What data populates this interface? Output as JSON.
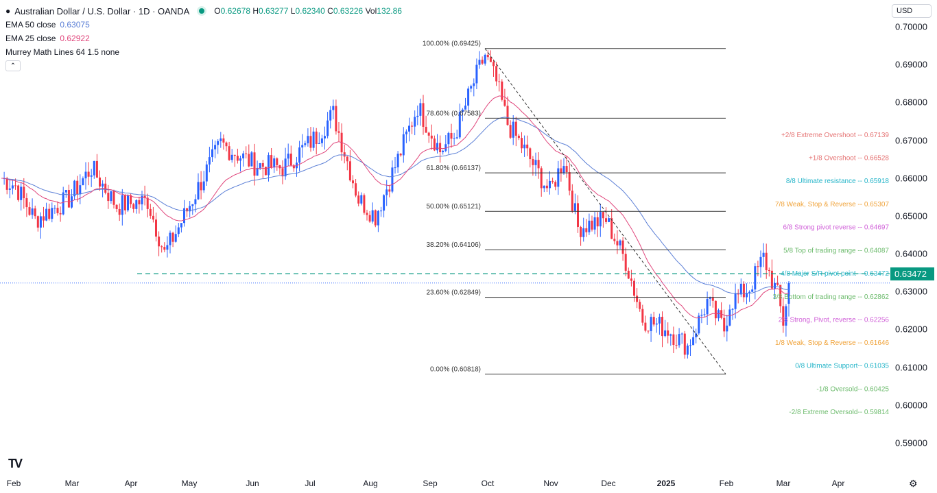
{
  "header": {
    "title": "Australian Dollar / U.S. Dollar · 1D · OANDA",
    "o_label": "O",
    "o": "0.62678",
    "h_label": "H",
    "h": "0.63277",
    "l_label": "L",
    "l": "0.62340",
    "c_label": "C",
    "c": "0.63226",
    "vol_label": "Vol",
    "vol": "132.86"
  },
  "indicators": [
    {
      "name": "EMA 50 close",
      "value": "0.63075",
      "color": "#5b7fd6"
    },
    {
      "name": "EMA 25 close",
      "value": "0.62922",
      "color": "#e0457b"
    },
    {
      "name": "Murrey Math Lines 64 1.5 none",
      "value": ""
    }
  ],
  "currency": "USD",
  "current_price_label": "0.63472",
  "chart_data": {
    "type": "candlestick",
    "ylim": [
      0.59,
      0.7
    ],
    "y_ticks": [
      "0.70000",
      "0.69000",
      "0.68000",
      "0.67000",
      "0.66000",
      "0.65000",
      "0.64000",
      "0.63000",
      "0.62000",
      "0.61000",
      "0.60000",
      "0.59000"
    ],
    "x_ticks": [
      "Feb",
      "Mar",
      "Apr",
      "May",
      "Jun",
      "Jul",
      "Aug",
      "Sep",
      "Oct",
      "Nov",
      "Dec",
      "2025",
      "Feb",
      "Mar",
      "Apr"
    ],
    "last_close": 0.63226,
    "approx_close_path": [
      [
        0,
        0.66
      ],
      [
        5,
        0.658
      ],
      [
        12,
        0.649
      ],
      [
        24,
        0.6545
      ],
      [
        32,
        0.6627
      ],
      [
        41,
        0.6527
      ],
      [
        52,
        0.654
      ],
      [
        58,
        0.64
      ],
      [
        63,
        0.647
      ],
      [
        73,
        0.662
      ],
      [
        78,
        0.669
      ],
      [
        90,
        0.6636
      ],
      [
        100,
        0.6627
      ],
      [
        112,
        0.671
      ],
      [
        118,
        0.677
      ],
      [
        127,
        0.6545
      ],
      [
        133,
        0.65
      ],
      [
        141,
        0.665
      ],
      [
        148,
        0.679
      ],
      [
        156,
        0.6672
      ],
      [
        161,
        0.671
      ],
      [
        168,
        0.6853
      ],
      [
        172,
        0.6926
      ],
      [
        176,
        0.6853
      ],
      [
        180,
        0.6744
      ],
      [
        188,
        0.665
      ],
      [
        195,
        0.6563
      ],
      [
        200,
        0.665
      ],
      [
        205,
        0.647
      ],
      [
        215,
        0.649
      ],
      [
        222,
        0.638
      ],
      [
        228,
        0.6228
      ],
      [
        237,
        0.62
      ],
      [
        244,
        0.6155
      ],
      [
        251,
        0.6273
      ],
      [
        257,
        0.62
      ],
      [
        259,
        0.627
      ],
      [
        266,
        0.631
      ],
      [
        271,
        0.639
      ],
      [
        276,
        0.629
      ],
      [
        278,
        0.622
      ],
      [
        280,
        0.63226
      ]
    ],
    "fibonacci": [
      {
        "label": "100.00% (0.69425)",
        "price": 0.69425
      },
      {
        "label": "78.60% (0.67583)",
        "price": 0.67583
      },
      {
        "label": "61.80% (0.66137)",
        "price": 0.66137
      },
      {
        "label": "50.00% (0.65121)",
        "price": 0.65121
      },
      {
        "label": "38.20% (0.64106)",
        "price": 0.64106
      },
      {
        "label": "23.60% (0.62849)",
        "price": 0.62849
      },
      {
        "label": "0.00% (0.60818)",
        "price": 0.60818
      }
    ],
    "murrey": [
      {
        "label": "+2/8 Extreme Overshoot --  0.67139",
        "price": 0.67139,
        "color": "#e57373"
      },
      {
        "label": "+1/8 Overshoot --  0.66528",
        "price": 0.66528,
        "color": "#e57373"
      },
      {
        "label": "8/8 Ultimate resistance --  0.65918",
        "price": 0.65918,
        "color": "#26b5c9"
      },
      {
        "label": "7/8 Weak, Stop & Reverse --  0.65307",
        "price": 0.65307,
        "color": "#f0a33a"
      },
      {
        "label": "6/8 Strong pivot reverse --  0.64697",
        "price": 0.64697,
        "color": "#d060d8"
      },
      {
        "label": "5/8 Top of trading range --  0.64087",
        "price": 0.64087,
        "color": "#6dbb6d"
      },
      {
        "label": "4/8 Major S/R pivot point --  0.63472",
        "price": 0.63472,
        "color": "#26b5c9"
      },
      {
        "label": "3/8 Bottom of trading range --  0.62862",
        "price": 0.62862,
        "color": "#6dbb6d"
      },
      {
        "label": "2/8 Strong, Pivot, reverse --  0.62256",
        "price": 0.62256,
        "color": "#d060d8"
      },
      {
        "label": "1/8 Weak, Stop & Reverse --  0.61646",
        "price": 0.61646,
        "color": "#f0a33a"
      },
      {
        "label": "0/8 Ultimate Support--  0.61035",
        "price": 0.61035,
        "color": "#26b5c9"
      },
      {
        "label": "-1/8 Oversold--  0.60425",
        "price": 0.60425,
        "color": "#6dbb6d"
      },
      {
        "label": "-2/8 Extreme Oversold--  0.59814",
        "price": 0.59814,
        "color": "#6dbb6d"
      }
    ],
    "pivot_line_price": 0.63472,
    "colors": {
      "up": "#2962ff",
      "down": "#f23645",
      "ema50": "#5b7fd6",
      "ema25": "#e0457b",
      "pivot": "#089981"
    }
  }
}
